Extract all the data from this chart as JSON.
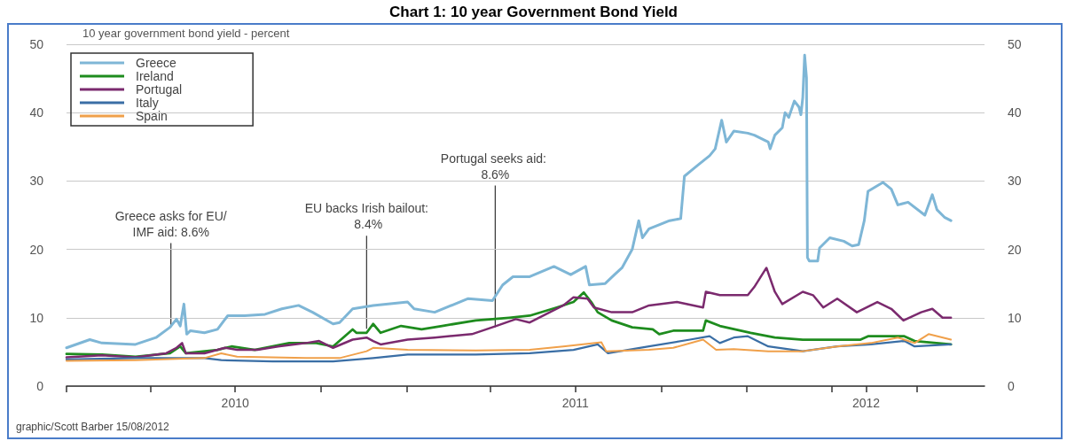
{
  "chart_data": {
    "type": "line",
    "title": "Chart 1: 10 year Government Bond Yield",
    "subtitle": "10 year government bond yield - percent",
    "xlim": [
      "2010-01-01",
      "2012-09-12"
    ],
    "xticks": [
      {
        "value": "2010-01-01",
        "label": null
      },
      {
        "value": "2010-04-01",
        "label": null
      },
      {
        "value": "2010-07-01",
        "label": "2010"
      },
      {
        "value": "2010-10-01",
        "label": null
      },
      {
        "value": "2011-01-01",
        "label": null
      },
      {
        "value": "2011-04-01",
        "label": null
      },
      {
        "value": "2011-07-01",
        "label": "2011"
      },
      {
        "value": "2011-10-01",
        "label": null
      },
      {
        "value": "2012-01-01",
        "label": null
      },
      {
        "value": "2012-04-01",
        "label": null
      },
      {
        "value": "2012-05-08",
        "label": "2012"
      },
      {
        "value": "2012-07-01",
        "label": null
      }
    ],
    "ylim": [
      0,
      50
    ],
    "yticks": [
      0,
      10,
      20,
      30,
      40,
      50
    ],
    "y2lim": [
      0,
      50
    ],
    "y2ticks": [
      0,
      10,
      20,
      30,
      40,
      50
    ],
    "grid": "y",
    "legend": "top left",
    "marker": "none",
    "line_style": "solid",
    "series": [
      {
        "name": "Greece",
        "color": "#7eb6d6",
        "x": [
          "2010-01-01",
          "2010-01-26",
          "2010-02-08",
          "2010-03-16",
          "2010-04-07",
          "2010-04-22",
          "2010-04-29",
          "2010-05-03",
          "2010-05-07",
          "2010-05-10",
          "2010-05-14",
          "2010-05-29",
          "2010-06-12",
          "2010-06-23",
          "2010-07-11",
          "2010-08-02",
          "2010-08-20",
          "2010-09-07",
          "2010-09-22",
          "2010-10-14",
          "2010-10-21",
          "2010-11-04",
          "2010-11-26",
          "2011-01-02",
          "2011-01-09",
          "2011-01-31",
          "2011-03-08",
          "2011-04-03",
          "2011-04-14",
          "2011-04-25",
          "2011-05-13",
          "2011-06-08",
          "2011-06-26",
          "2011-07-12",
          "2011-07-16",
          "2011-08-02",
          "2011-08-12",
          "2011-08-20",
          "2011-08-31",
          "2011-09-07",
          "2011-09-11",
          "2011-09-18",
          "2011-10-10",
          "2011-10-22",
          "2011-10-26",
          "2011-11-02",
          "2011-11-11",
          "2011-11-22",
          "2011-11-28",
          "2011-12-05",
          "2011-12-10",
          "2011-12-18",
          "2012-01-02",
          "2012-01-09",
          "2012-01-24",
          "2012-01-26",
          "2012-01-31",
          "2012-02-08",
          "2012-02-11",
          "2012-02-15",
          "2012-02-21",
          "2012-02-26",
          "2012-02-28",
          "2012-03-01",
          "2012-03-03",
          "2012-03-05",
          "2012-03-06",
          "2012-03-08",
          "2012-03-17",
          "2012-03-19",
          "2012-03-30",
          "2012-04-14",
          "2012-04-23",
          "2012-04-30",
          "2012-05-06",
          "2012-05-10",
          "2012-05-26",
          "2012-06-04",
          "2012-06-11",
          "2012-06-22",
          "2012-07-10",
          "2012-07-18",
          "2012-07-23",
          "2012-07-31",
          "2012-08-07"
        ],
        "values": [
          5.6,
          6.8,
          6.3,
          6.1,
          7.1,
          8.6,
          9.8,
          8.8,
          12.0,
          7.6,
          8.1,
          7.8,
          8.3,
          10.3,
          10.3,
          10.5,
          11.3,
          11.8,
          10.8,
          9.1,
          9.3,
          11.3,
          11.8,
          12.3,
          11.3,
          10.8,
          12.8,
          12.5,
          14.8,
          16.0,
          16.0,
          17.5,
          16.3,
          17.5,
          14.8,
          15.0,
          16.3,
          17.3,
          20.0,
          24.2,
          21.7,
          23.0,
          24.2,
          24.5,
          30.7,
          31.5,
          32.5,
          33.7,
          34.7,
          38.9,
          35.7,
          37.3,
          37.0,
          36.7,
          35.7,
          34.7,
          36.7,
          37.8,
          40.0,
          39.3,
          41.7,
          40.8,
          39.7,
          42.2,
          48.4,
          45.1,
          18.8,
          18.3,
          18.3,
          20.2,
          21.7,
          21.2,
          20.5,
          20.7,
          24.2,
          28.5,
          29.8,
          28.8,
          26.5,
          26.9,
          25.0,
          28.0,
          25.8,
          24.7,
          24.2
        ]
      },
      {
        "name": "Ireland",
        "color": "#1e8c1e",
        "x": [
          "2010-01-01",
          "2010-02-08",
          "2010-03-16",
          "2010-04-22",
          "2010-05-03",
          "2010-05-09",
          "2010-06-12",
          "2010-06-27",
          "2010-07-22",
          "2010-08-28",
          "2010-09-26",
          "2010-10-14",
          "2010-11-04",
          "2010-11-08",
          "2010-11-19",
          "2010-11-26",
          "2010-12-04",
          "2010-12-26",
          "2011-01-17",
          "2011-02-08",
          "2011-03-16",
          "2011-04-03",
          "2011-04-21",
          "2011-05-13",
          "2011-06-11",
          "2011-06-29",
          "2011-07-10",
          "2011-07-18",
          "2011-07-25",
          "2011-08-09",
          "2011-08-31",
          "2011-09-22",
          "2011-09-29",
          "2011-10-14",
          "2011-11-15",
          "2011-11-18",
          "2011-12-03",
          "2012-01-05",
          "2012-01-31",
          "2012-03-01",
          "2012-04-07",
          "2012-05-02",
          "2012-05-10",
          "2012-06-18",
          "2012-06-29",
          "2012-08-07"
        ],
        "values": [
          4.7,
          4.6,
          4.3,
          4.8,
          5.8,
          4.8,
          5.3,
          5.8,
          5.3,
          6.3,
          6.3,
          5.8,
          8.3,
          7.8,
          7.8,
          9.1,
          7.8,
          8.8,
          8.3,
          8.8,
          9.6,
          9.8,
          10.0,
          10.3,
          11.5,
          12.3,
          13.7,
          12.3,
          10.8,
          9.6,
          8.6,
          8.3,
          7.6,
          8.1,
          8.1,
          9.6,
          8.8,
          7.8,
          7.1,
          6.8,
          6.8,
          6.8,
          7.3,
          7.3,
          6.6,
          6.1
        ]
      },
      {
        "name": "Portugal",
        "color": "#7b2a6e",
        "x": [
          "2010-01-01",
          "2010-02-08",
          "2010-03-16",
          "2010-04-18",
          "2010-04-29",
          "2010-05-05",
          "2010-05-09",
          "2010-05-29",
          "2010-06-20",
          "2010-07-03",
          "2010-07-25",
          "2010-08-16",
          "2010-09-15",
          "2010-09-29",
          "2010-10-14",
          "2010-11-04",
          "2010-11-19",
          "2010-11-26",
          "2010-12-04",
          "2011-01-02",
          "2011-01-31",
          "2011-03-12",
          "2011-04-07",
          "2011-04-28",
          "2011-05-13",
          "2011-06-18",
          "2011-06-29",
          "2011-07-14",
          "2011-07-21",
          "2011-08-09",
          "2011-08-31",
          "2011-09-18",
          "2011-10-18",
          "2011-11-15",
          "2011-11-18",
          "2011-12-03",
          "2012-01-02",
          "2012-01-09",
          "2012-01-22",
          "2012-01-31",
          "2012-02-08",
          "2012-03-01",
          "2012-03-12",
          "2012-03-23",
          "2012-04-07",
          "2012-04-28",
          "2012-05-20",
          "2012-06-04",
          "2012-06-17",
          "2012-07-06",
          "2012-07-18",
          "2012-07-29",
          "2012-08-07"
        ],
        "values": [
          4.2,
          4.5,
          4.2,
          4.8,
          5.6,
          6.3,
          4.8,
          4.8,
          5.6,
          5.3,
          5.3,
          5.8,
          6.3,
          6.6,
          5.6,
          6.8,
          7.1,
          6.6,
          6.1,
          6.8,
          7.1,
          7.6,
          8.8,
          9.8,
          9.3,
          11.8,
          13.0,
          12.8,
          11.5,
          10.8,
          10.8,
          11.8,
          12.3,
          11.5,
          13.8,
          13.3,
          13.3,
          14.5,
          17.3,
          13.8,
          12.0,
          13.8,
          13.3,
          11.5,
          12.8,
          10.8,
          12.3,
          11.3,
          9.6,
          10.8,
          11.3,
          10.0,
          10.0
        ]
      },
      {
        "name": "Italy",
        "color": "#3a6ea5",
        "x": [
          "2010-01-01",
          "2010-03-16",
          "2010-05-29",
          "2010-06-16",
          "2010-08-10",
          "2010-10-14",
          "2010-11-26",
          "2011-01-02",
          "2011-03-16",
          "2011-05-13",
          "2011-06-29",
          "2011-07-25",
          "2011-08-05",
          "2011-09-18",
          "2011-11-01",
          "2011-11-22",
          "2011-12-03",
          "2011-12-18",
          "2012-01-02",
          "2012-01-24",
          "2012-03-01",
          "2012-04-07",
          "2012-05-13",
          "2012-06-18",
          "2012-06-29",
          "2012-08-07"
        ],
        "values": [
          3.9,
          4.1,
          4.1,
          3.8,
          3.6,
          3.6,
          4.1,
          4.6,
          4.6,
          4.8,
          5.3,
          6.1,
          4.8,
          5.8,
          6.8,
          7.3,
          6.3,
          7.1,
          7.3,
          5.8,
          5.1,
          5.8,
          6.1,
          6.6,
          5.8,
          6.1
        ]
      },
      {
        "name": "Spain",
        "color": "#f0a04a",
        "x": [
          "2010-01-01",
          "2010-03-16",
          "2010-05-29",
          "2010-06-16",
          "2010-07-03",
          "2010-09-15",
          "2010-10-21",
          "2010-11-19",
          "2010-11-26",
          "2011-01-02",
          "2011-03-16",
          "2011-05-13",
          "2011-06-18",
          "2011-07-29",
          "2011-08-03",
          "2011-09-18",
          "2011-10-14",
          "2011-11-15",
          "2011-11-29",
          "2011-12-18",
          "2012-01-24",
          "2012-03-01",
          "2012-04-07",
          "2012-05-13",
          "2012-06-11",
          "2012-06-29",
          "2012-07-14",
          "2012-08-07"
        ],
        "values": [
          3.7,
          3.8,
          4.1,
          4.8,
          4.3,
          4.1,
          4.1,
          5.1,
          5.6,
          5.3,
          5.2,
          5.3,
          5.8,
          6.4,
          5.1,
          5.3,
          5.6,
          6.8,
          5.3,
          5.4,
          5.1,
          5.1,
          5.8,
          6.3,
          7.1,
          6.3,
          7.6,
          6.8
        ]
      }
    ],
    "annotations": [
      {
        "text": "Greece asks for EU/IMF aid: 8.6%",
        "x": "2010-04-23",
        "y": 8.6
      },
      {
        "text": "EU backs Irish bailout: 8.4%",
        "x": "2010-11-19",
        "y": 8.4
      },
      {
        "text": "Portugal seeks aid: 8.6%",
        "x": "2011-04-06",
        "y": 8.6
      },
      "graphic/Scott Barber 15/08/2012"
    ]
  }
}
